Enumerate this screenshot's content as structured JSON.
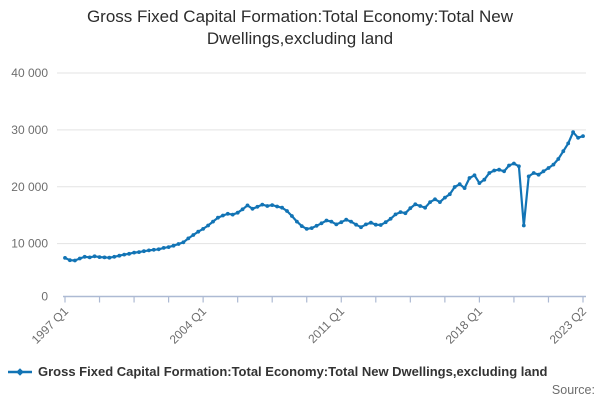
{
  "title": "Gross Fixed Capital Formation:Total Economy:Total New Dwellings,excluding land",
  "legend": {
    "label": "Gross Fixed Capital Formation:Total Economy:Total New Dwellings,excluding land"
  },
  "source_label": "Source:",
  "colors": {
    "line": "#1274b5",
    "axis": "#adbad3",
    "grid": "#e3e3e3",
    "tick_text": "#6e6e6e",
    "title_text": "#2c2c2c",
    "legend_text": "#333333"
  },
  "chart_data": {
    "type": "line",
    "title": "Gross Fixed Capital Formation:Total Economy:Total New Dwellings,excluding land",
    "xlabel": "",
    "ylabel": "",
    "ylim": [
      0,
      40000
    ],
    "grid": "horizontal",
    "legend_position": "bottom-left",
    "marker": "dot",
    "frequency": "quarterly",
    "x_tick_labels": [
      "1997 Q1",
      "2004 Q1",
      "2011 Q1",
      "2018 Q1",
      "2023 Q2"
    ],
    "y_tick_labels": [
      "0",
      "10 000",
      "20 000",
      "30 000",
      "40 000"
    ],
    "x": [
      "1997 Q1",
      "1997 Q2",
      "1997 Q3",
      "1997 Q4",
      "1998 Q1",
      "1998 Q2",
      "1998 Q3",
      "1998 Q4",
      "1999 Q1",
      "1999 Q2",
      "1999 Q3",
      "1999 Q4",
      "2000 Q1",
      "2000 Q2",
      "2000 Q3",
      "2000 Q4",
      "2001 Q1",
      "2001 Q2",
      "2001 Q3",
      "2001 Q4",
      "2002 Q1",
      "2002 Q2",
      "2002 Q3",
      "2002 Q4",
      "2003 Q1",
      "2003 Q2",
      "2003 Q3",
      "2003 Q4",
      "2004 Q1",
      "2004 Q2",
      "2004 Q3",
      "2004 Q4",
      "2005 Q1",
      "2005 Q2",
      "2005 Q3",
      "2005 Q4",
      "2006 Q1",
      "2006 Q2",
      "2006 Q3",
      "2006 Q4",
      "2007 Q1",
      "2007 Q2",
      "2007 Q3",
      "2007 Q4",
      "2008 Q1",
      "2008 Q2",
      "2008 Q3",
      "2008 Q4",
      "2009 Q1",
      "2009 Q2",
      "2009 Q3",
      "2009 Q4",
      "2010 Q1",
      "2010 Q2",
      "2010 Q3",
      "2010 Q4",
      "2011 Q1",
      "2011 Q2",
      "2011 Q3",
      "2011 Q4",
      "2012 Q1",
      "2012 Q2",
      "2012 Q3",
      "2012 Q4",
      "2013 Q1",
      "2013 Q2",
      "2013 Q3",
      "2013 Q4",
      "2014 Q1",
      "2014 Q2",
      "2014 Q3",
      "2014 Q4",
      "2015 Q1",
      "2015 Q2",
      "2015 Q3",
      "2015 Q4",
      "2016 Q1",
      "2016 Q2",
      "2016 Q3",
      "2016 Q4",
      "2017 Q1",
      "2017 Q2",
      "2017 Q3",
      "2017 Q4",
      "2018 Q1",
      "2018 Q2",
      "2018 Q3",
      "2018 Q4",
      "2019 Q1",
      "2019 Q2",
      "2019 Q3",
      "2019 Q4",
      "2020 Q1",
      "2020 Q2",
      "2020 Q3",
      "2020 Q4",
      "2021 Q1",
      "2021 Q2",
      "2021 Q3",
      "2021 Q4",
      "2022 Q1",
      "2022 Q2",
      "2022 Q3",
      "2022 Q4",
      "2023 Q1",
      "2023 Q2"
    ],
    "series": [
      {
        "name": "Gross Fixed Capital Formation:Total Economy:Total New Dwellings,excluding land",
        "values": [
          6900,
          6500,
          6450,
          6800,
          7100,
          7000,
          7200,
          7050,
          7000,
          6950,
          7100,
          7300,
          7500,
          7650,
          7850,
          7950,
          8100,
          8250,
          8350,
          8450,
          8700,
          8850,
          9100,
          9400,
          9700,
          10400,
          11000,
          11600,
          12100,
          12700,
          13400,
          14100,
          14500,
          14800,
          14650,
          15000,
          15600,
          16300,
          15700,
          16050,
          16450,
          16200,
          16350,
          16100,
          15900,
          15300,
          14400,
          13400,
          12600,
          12100,
          12250,
          12650,
          13100,
          13600,
          13400,
          12900,
          13300,
          13750,
          13400,
          12850,
          12400,
          12900,
          13200,
          12850,
          12800,
          13300,
          13900,
          14700,
          15100,
          14900,
          15800,
          16500,
          16200,
          15900,
          16900,
          17400,
          16900,
          17700,
          18300,
          19600,
          20100,
          19400,
          21200,
          21700,
          20300,
          20900,
          22100,
          22550,
          22700,
          22400,
          23450,
          23800,
          23300,
          12700,
          21500,
          22100,
          21800,
          22400,
          23000,
          23600,
          24600,
          26000,
          27400,
          29400,
          28400,
          28700
        ]
      }
    ]
  }
}
